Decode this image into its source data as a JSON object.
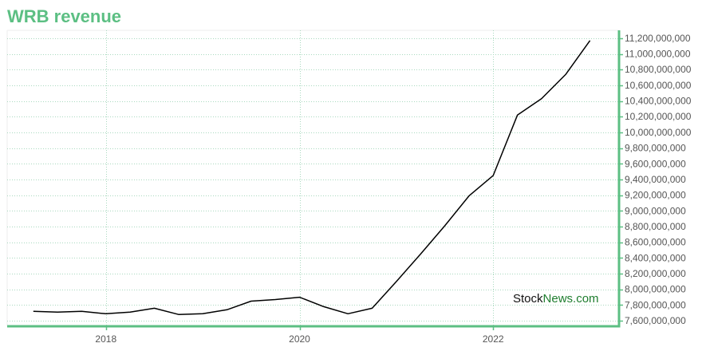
{
  "title": "WRB revenue",
  "watermark": {
    "part1": "Stock",
    "part2": "News.com"
  },
  "colors": {
    "accent": "#5cbf83",
    "line": "#000000",
    "grid": "#a9d9bf"
  },
  "chart_data": {
    "type": "line",
    "title": "WRB revenue",
    "xlabel": "",
    "ylabel": "",
    "x_ticks": [
      {
        "label": "2018",
        "value": 2018.0
      },
      {
        "label": "2020",
        "value": 2020.0
      },
      {
        "label": "2022",
        "value": 2022.0
      }
    ],
    "y_ticks": [
      {
        "label": "7,600,000,000",
        "value": 7600000000
      },
      {
        "label": "7,800,000,000",
        "value": 7800000000
      },
      {
        "label": "8,000,000,000",
        "value": 8000000000
      },
      {
        "label": "8,200,000,000",
        "value": 8200000000
      },
      {
        "label": "8,400,000,000",
        "value": 8400000000
      },
      {
        "label": "8,600,000,000",
        "value": 8600000000
      },
      {
        "label": "8,800,000,000",
        "value": 8800000000
      },
      {
        "label": "9,000,000,000",
        "value": 9000000000
      },
      {
        "label": "9,200,000,000",
        "value": 9200000000
      },
      {
        "label": "9,400,000,000",
        "value": 9400000000
      },
      {
        "label": "9,600,000,000",
        "value": 9600000000
      },
      {
        "label": "9,800,000,000",
        "value": 9800000000
      },
      {
        "label": "10,000,000,000",
        "value": 10000000000
      },
      {
        "label": "10,200,000,000",
        "value": 10200000000
      },
      {
        "label": "10,400,000,000",
        "value": 10400000000
      },
      {
        "label": "10,600,000,000",
        "value": 10600000000
      },
      {
        "label": "10,800,000,000",
        "value": 10800000000
      },
      {
        "label": "11,000,000,000",
        "value": 11000000000
      },
      {
        "label": "11,200,000,000",
        "value": 11200000000
      }
    ],
    "xlim": [
      2016.98,
      2023.3
    ],
    "ylim": [
      7530000000,
      11300000000
    ],
    "grid": true,
    "legend": "none",
    "y_axis_side": "right",
    "series": [
      {
        "x": [
          2017.25,
          2017.5,
          2017.75,
          2018.0,
          2018.25,
          2018.5,
          2018.75,
          2019.0,
          2019.25,
          2019.5,
          2019.75,
          2020.0,
          2020.25,
          2020.5,
          2020.75,
          2021.0,
          2021.25,
          2021.5,
          2021.75,
          2022.0,
          2022.25,
          2022.5,
          2022.75,
          2023.0
        ],
        "y": [
          7720000000,
          7710000000,
          7720000000,
          7690000000,
          7710000000,
          7760000000,
          7680000000,
          7690000000,
          7740000000,
          7850000000,
          7870000000,
          7900000000,
          7780000000,
          7690000000,
          7760000000,
          8100000000,
          8450000000,
          8810000000,
          9190000000,
          9450000000,
          10220000000,
          10430000000,
          10740000000,
          11170000000
        ]
      }
    ]
  }
}
